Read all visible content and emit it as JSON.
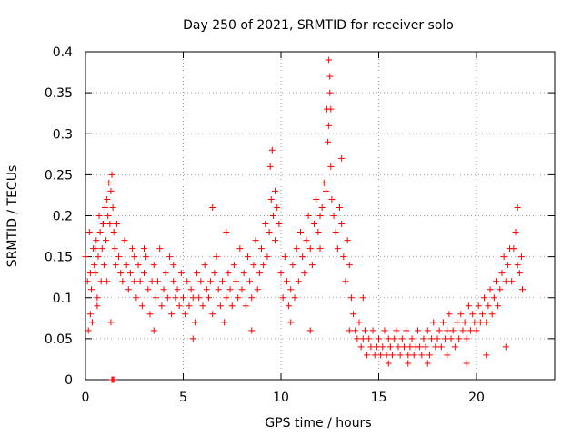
{
  "chart_data": {
    "type": "scatter",
    "title": "Day 250 of 2021, SRMTID for receiver solo",
    "xlabel": "GPS time / hours",
    "ylabel": "SRMTID / TECUs",
    "xlim": [
      0,
      24
    ],
    "ylim": [
      0,
      0.4
    ],
    "xticks": [
      0,
      5,
      10,
      15,
      20
    ],
    "yticks": [
      0,
      0.05,
      0.1,
      0.15,
      0.2,
      0.25,
      0.3,
      0.35,
      0.4
    ],
    "xtick_labels": [
      "0",
      "5",
      "10",
      "15",
      "20"
    ],
    "ytick_labels": [
      "0",
      "0.05",
      "0.1",
      "0.15",
      "0.2",
      "0.25",
      "0.3",
      "0.35",
      "0.4"
    ],
    "grid": true,
    "marker": "+",
    "color": "#ff0000",
    "series": [
      {
        "name": "SRMTID",
        "x": [
          0.0,
          0.1,
          0.2,
          0.25,
          0.3,
          0.35,
          0.4,
          0.45,
          0.5,
          0.55,
          0.6,
          0.65,
          0.7,
          0.75,
          0.8,
          0.85,
          0.9,
          0.95,
          1.0,
          1.05,
          1.1,
          1.15,
          1.2,
          1.25,
          1.3,
          1.35,
          1.4,
          1.45,
          1.5,
          1.55,
          1.6,
          1.7,
          1.8,
          1.9,
          2.0,
          2.1,
          2.2,
          2.3,
          2.4,
          2.5,
          2.6,
          2.7,
          2.8,
          2.9,
          3.0,
          3.1,
          3.2,
          3.3,
          3.4,
          3.5,
          3.6,
          3.7,
          3.8,
          3.9,
          4.0,
          4.1,
          4.2,
          4.3,
          4.4,
          4.5,
          4.6,
          4.7,
          4.8,
          4.9,
          5.0,
          5.1,
          5.2,
          5.3,
          5.4,
          5.5,
          5.6,
          5.7,
          5.8,
          5.9,
          6.0,
          6.1,
          6.2,
          6.3,
          6.4,
          6.5,
          6.6,
          6.7,
          6.8,
          6.9,
          7.0,
          7.1,
          7.2,
          7.3,
          7.4,
          7.5,
          7.6,
          7.7,
          7.8,
          7.9,
          8.0,
          8.1,
          8.2,
          8.3,
          8.4,
          8.5,
          8.6,
          8.7,
          8.8,
          8.9,
          9.0,
          9.1,
          9.2,
          9.3,
          9.4,
          9.5,
          9.6,
          9.7,
          9.8,
          9.9,
          10.0,
          10.1,
          10.2,
          10.3,
          10.4,
          10.5,
          10.6,
          10.7,
          10.8,
          10.9,
          11.0,
          11.1,
          11.2,
          11.3,
          11.4,
          11.5,
          11.6,
          11.7,
          11.8,
          11.9,
          12.0,
          12.1,
          12.2,
          12.3,
          12.35,
          12.4,
          12.45,
          12.5,
          12.55,
          12.6,
          12.7,
          12.8,
          12.9,
          13.0,
          13.1,
          13.2,
          13.3,
          13.4,
          13.5,
          13.6,
          13.7,
          13.8,
          13.9,
          14.0,
          14.1,
          14.2,
          14.3,
          14.4,
          14.5,
          14.6,
          14.7,
          14.8,
          14.9,
          15.0,
          15.1,
          15.2,
          15.3,
          15.4,
          15.5,
          15.6,
          15.7,
          15.8,
          15.9,
          16.0,
          16.1,
          16.2,
          16.3,
          16.4,
          16.5,
          16.6,
          16.7,
          16.8,
          16.9,
          17.0,
          17.1,
          17.2,
          17.3,
          17.4,
          17.5,
          17.6,
          17.7,
          17.8,
          17.9,
          18.0,
          18.1,
          18.2,
          18.3,
          18.4,
          18.5,
          18.6,
          18.7,
          18.8,
          18.9,
          19.0,
          19.1,
          19.2,
          19.3,
          19.4,
          19.5,
          19.6,
          19.7,
          19.8,
          19.9,
          20.0,
          20.1,
          20.2,
          20.3,
          20.4,
          20.5,
          20.6,
          20.7,
          20.8,
          20.9,
          21.0,
          21.1,
          21.2,
          21.3,
          21.4,
          21.5,
          21.6,
          21.7,
          21.8,
          21.9,
          22.0,
          22.1,
          22.2,
          22.3,
          22.35,
          0.15,
          0.25,
          0.5,
          0.6,
          0.9,
          1.1,
          1.3,
          2.5,
          3.0,
          3.5,
          4.5,
          5.5,
          6.5,
          7.2,
          8.5,
          9.45,
          9.55,
          9.7,
          10.5,
          11.5,
          12.0,
          12.45,
          12.5,
          12.55,
          13.1,
          13.5,
          14.2,
          15.5,
          16.5,
          17.5,
          18.5,
          19.5,
          20.5,
          21.5,
          22.1,
          1.35,
          1.4,
          1.45
        ],
        "y": [
          0.15,
          0.12,
          0.18,
          0.08,
          0.11,
          0.07,
          0.16,
          0.14,
          0.13,
          0.17,
          0.1,
          0.15,
          0.2,
          0.18,
          0.12,
          0.16,
          0.19,
          0.14,
          0.21,
          0.17,
          0.22,
          0.2,
          0.24,
          0.19,
          0.23,
          0.25,
          0.21,
          0.18,
          0.16,
          0.14,
          0.19,
          0.15,
          0.13,
          0.12,
          0.17,
          0.14,
          0.11,
          0.13,
          0.16,
          0.12,
          0.1,
          0.14,
          0.12,
          0.09,
          0.13,
          0.15,
          0.11,
          0.08,
          0.12,
          0.14,
          0.1,
          0.12,
          0.16,
          0.09,
          0.11,
          0.13,
          0.1,
          0.15,
          0.08,
          0.12,
          0.1,
          0.11,
          0.09,
          0.13,
          0.1,
          0.08,
          0.12,
          0.09,
          0.11,
          0.1,
          0.07,
          0.13,
          0.1,
          0.12,
          0.09,
          0.14,
          0.11,
          0.1,
          0.12,
          0.08,
          0.13,
          0.15,
          0.11,
          0.09,
          0.12,
          0.07,
          0.1,
          0.13,
          0.11,
          0.09,
          0.14,
          0.12,
          0.1,
          0.16,
          0.11,
          0.13,
          0.09,
          0.15,
          0.12,
          0.1,
          0.14,
          0.17,
          0.11,
          0.13,
          0.16,
          0.14,
          0.19,
          0.15,
          0.18,
          0.22,
          0.2,
          0.17,
          0.21,
          0.19,
          0.13,
          0.1,
          0.15,
          0.12,
          0.09,
          0.11,
          0.14,
          0.1,
          0.16,
          0.12,
          0.18,
          0.15,
          0.13,
          0.17,
          0.2,
          0.16,
          0.14,
          0.19,
          0.22,
          0.18,
          0.16,
          0.21,
          0.24,
          0.23,
          0.33,
          0.29,
          0.39,
          0.35,
          0.26,
          0.22,
          0.2,
          0.18,
          0.16,
          0.21,
          0.19,
          0.15,
          0.12,
          0.17,
          0.14,
          0.1,
          0.08,
          0.06,
          0.05,
          0.07,
          0.04,
          0.05,
          0.06,
          0.03,
          0.05,
          0.04,
          0.06,
          0.03,
          0.04,
          0.05,
          0.03,
          0.04,
          0.06,
          0.03,
          0.05,
          0.04,
          0.03,
          0.05,
          0.06,
          0.04,
          0.03,
          0.05,
          0.04,
          0.06,
          0.03,
          0.04,
          0.05,
          0.03,
          0.04,
          0.06,
          0.04,
          0.03,
          0.05,
          0.04,
          0.06,
          0.03,
          0.05,
          0.07,
          0.04,
          0.05,
          0.06,
          0.04,
          0.07,
          0.05,
          0.06,
          0.08,
          0.05,
          0.06,
          0.04,
          0.07,
          0.05,
          0.08,
          0.06,
          0.07,
          0.05,
          0.09,
          0.06,
          0.08,
          0.07,
          0.06,
          0.09,
          0.07,
          0.08,
          0.1,
          0.07,
          0.09,
          0.11,
          0.08,
          0.1,
          0.12,
          0.09,
          0.11,
          0.13,
          0.15,
          0.12,
          0.14,
          0.16,
          0.12,
          0.16,
          0.18,
          0.14,
          0.13,
          0.15,
          0.11,
          0.06,
          0.13,
          0.16,
          0.09,
          0.19,
          0.12,
          0.07,
          0.15,
          0.16,
          0.06,
          0.14,
          0.05,
          0.21,
          0.18,
          0.06,
          0.26,
          0.28,
          0.23,
          0.07,
          0.06,
          0.2,
          0.31,
          0.37,
          0.33,
          0.27,
          0.06,
          0.1,
          0.02,
          0.02,
          0.02,
          0.03,
          0.02,
          0.03,
          0.04,
          0.21,
          0.0,
          0.0,
          0.0
        ]
      }
    ]
  }
}
